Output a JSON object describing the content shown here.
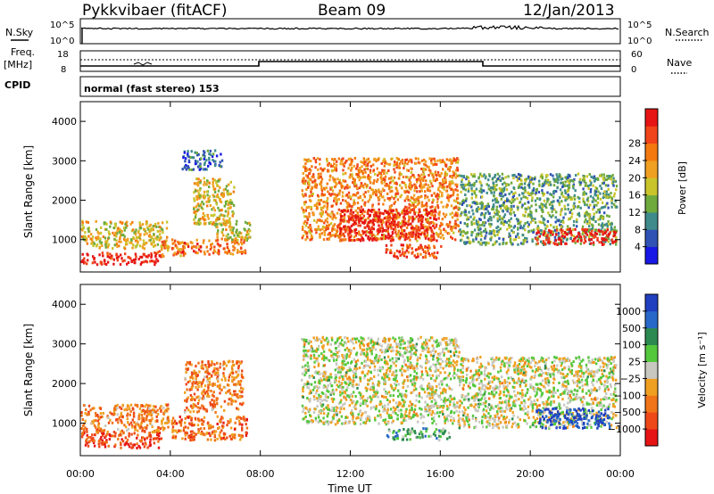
{
  "header": {
    "station": "Pykkvibaer (fitACF)",
    "beam": "Beam 09",
    "date": "12/Jan/2013"
  },
  "nsky_panel": {
    "left_label": "N.Sky",
    "right_label": "N.Search",
    "left_ticks": [
      "10^5",
      "10^0"
    ],
    "right_ticks": [
      "10^5",
      "10^0"
    ]
  },
  "freq_panel": {
    "left_label_1": "Freq.",
    "left_label_2": "[MHz]",
    "right_label": "Nave",
    "left_ticks": [
      "18",
      "8"
    ],
    "right_ticks": [
      "60",
      "0"
    ]
  },
  "cpid": {
    "label": "CPID",
    "value": "normal (fast stereo) 153"
  },
  "chart_data": [
    {
      "type": "heatmap",
      "name": "power",
      "xlabel": "Time UT",
      "ylabel": "Slant Range [km]",
      "xlim_hours": [
        0,
        24
      ],
      "ylim_km": [
        180,
        4500
      ],
      "yticks": [
        "1000",
        "2000",
        "3000",
        "4000"
      ],
      "colorbar": {
        "label": "Power [dB]",
        "ticks": [
          "4",
          "8",
          "12",
          "16",
          "20",
          "24",
          "28"
        ],
        "colors": [
          "#1818e6",
          "#2f52b4",
          "#3f8b8b",
          "#6faa3c",
          "#c9c42a",
          "#f0a020",
          "#f47a10",
          "#f0441a",
          "#e61414"
        ]
      },
      "regions": [
        {
          "t": [
            0.0,
            3.9
          ],
          "r": [
            800,
            1500
          ],
          "level": 0.55
        },
        {
          "t": [
            0.0,
            3.6
          ],
          "r": [
            400,
            700
          ],
          "level": 0.95
        },
        {
          "t": [
            3.2,
            4.6
          ],
          "r": [
            600,
            1000
          ],
          "level": 0.7
        },
        {
          "t": [
            4.0,
            7.3
          ],
          "r": [
            650,
            1050
          ],
          "level": 0.75
        },
        {
          "t": [
            5.0,
            6.8
          ],
          "r": [
            1400,
            2600
          ],
          "level": 0.55
        },
        {
          "t": [
            6.0,
            7.5
          ],
          "r": [
            1000,
            1500
          ],
          "level": 0.5
        },
        {
          "t": [
            4.5,
            6.3
          ],
          "r": [
            2800,
            3300
          ],
          "level": 0.2
        },
        {
          "t": [
            9.8,
            16.8
          ],
          "r": [
            1000,
            3100
          ],
          "level": 0.7
        },
        {
          "t": [
            11.5,
            15.8
          ],
          "r": [
            1000,
            1800
          ],
          "level": 0.95
        },
        {
          "t": [
            13.5,
            16.0
          ],
          "r": [
            550,
            900
          ],
          "level": 0.85
        },
        {
          "t": [
            16.8,
            23.8
          ],
          "r": [
            900,
            2700
          ],
          "level": 0.35
        },
        {
          "t": [
            20.2,
            23.8
          ],
          "r": [
            900,
            1300
          ],
          "level": 0.95
        }
      ]
    },
    {
      "type": "heatmap",
      "name": "velocity",
      "xlabel": "Time UT",
      "ylabel": "Slant Range [km]",
      "xlim_hours": [
        0,
        24
      ],
      "ylim_km": [
        180,
        4500
      ],
      "xticks": [
        "00:00",
        "04:00",
        "08:00",
        "12:00",
        "16:00",
        "20:00",
        "00:00"
      ],
      "yticks": [
        "1000",
        "2000",
        "3000",
        "4000"
      ],
      "colorbar": {
        "label": "Velocity [m s⁻¹]",
        "ticks": [
          "1000",
          "500",
          "100",
          "25",
          "−25",
          "−100",
          "−500",
          "−1000"
        ],
        "colors": [
          "#2040c0",
          "#2868c8",
          "#2c8a50",
          "#54c83c",
          "#c8c8c0",
          "#f0a020",
          "#f07418",
          "#ee4818",
          "#e61414"
        ]
      },
      "regions": [
        {
          "t": [
            0.0,
            3.6
          ],
          "r": [
            400,
            800
          ],
          "level": 0.85
        },
        {
          "t": [
            0.0,
            3.9
          ],
          "r": [
            800,
            1500
          ],
          "level": 0.7
        },
        {
          "t": [
            4.0,
            7.4
          ],
          "r": [
            600,
            1200
          ],
          "level": 0.75
        },
        {
          "t": [
            4.6,
            7.2
          ],
          "r": [
            1300,
            2600
          ],
          "level": 0.7
        },
        {
          "t": [
            9.8,
            16.8
          ],
          "r": [
            1000,
            3200
          ],
          "level": 0.5
        },
        {
          "t": [
            13.6,
            16.4
          ],
          "r": [
            600,
            900
          ],
          "level": 0.35
        },
        {
          "t": [
            16.8,
            23.8
          ],
          "r": [
            900,
            2700
          ],
          "level": 0.5
        },
        {
          "t": [
            20.2,
            23.5
          ],
          "r": [
            900,
            1400
          ],
          "level": 0.05
        }
      ]
    }
  ]
}
